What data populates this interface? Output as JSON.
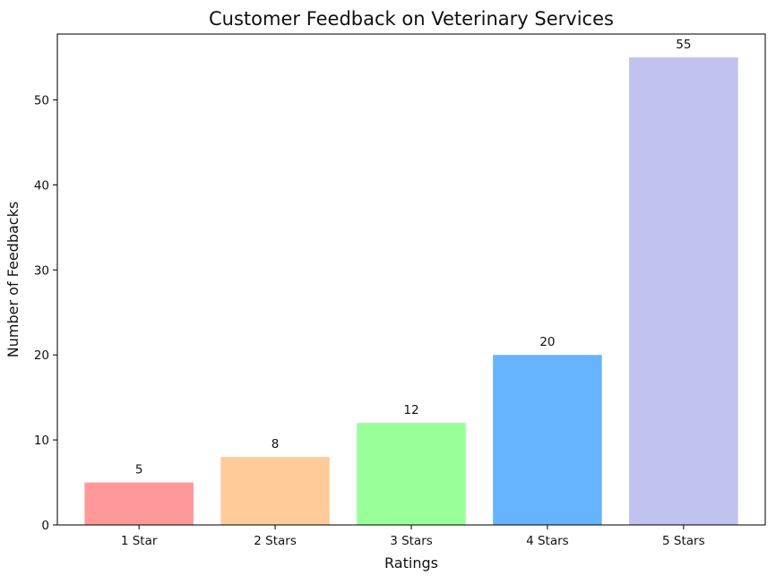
{
  "chart_data": {
    "type": "bar",
    "title": "Customer Feedback on Veterinary Services",
    "xlabel": "Ratings",
    "ylabel": "Number of Feedbacks",
    "categories": [
      "1 Star",
      "2 Stars",
      "3 Stars",
      "4 Stars",
      "5 Stars"
    ],
    "values": [
      5,
      8,
      12,
      20,
      55
    ],
    "colors": [
      "#ff9999",
      "#ffcc99",
      "#99ff99",
      "#66b3ff",
      "#c2c2f0"
    ],
    "ylim": [
      0,
      57.75
    ],
    "yticks": [
      0,
      10,
      20,
      30,
      40,
      50
    ],
    "grid": false,
    "legend": "none"
  }
}
